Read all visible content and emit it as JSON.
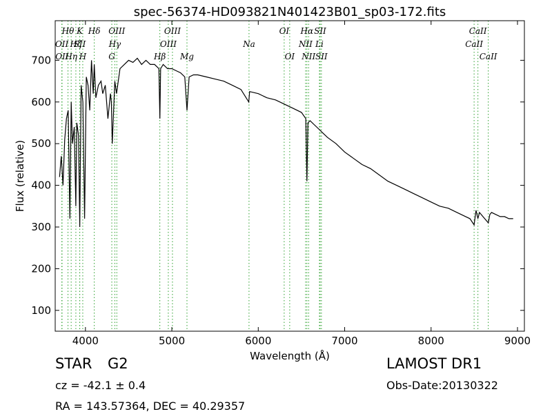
{
  "chart_data": {
    "type": "line",
    "title": "spec-56374-HD093821N401423B01_sp03-172.fits",
    "xlabel": "Wavelength (Å)",
    "ylabel": "Flux (relative)",
    "xlim": [
      3650,
      9080
    ],
    "ylim": [
      50,
      795
    ],
    "grid": false,
    "x_ticks": [
      4000,
      5000,
      6000,
      7000,
      8000,
      9000
    ],
    "y_ticks": [
      100,
      200,
      300,
      400,
      500,
      600,
      700
    ],
    "line_color": "#000000",
    "marker_color": "#2ca02c",
    "series": [
      {
        "x": [
          3700,
          3720,
          3740,
          3760,
          3780,
          3800,
          3820,
          3835,
          3850,
          3870,
          3889,
          3900,
          3920,
          3934,
          3950,
          3970,
          3990,
          4010,
          4030,
          4050,
          4070,
          4090,
          4102,
          4120,
          4150,
          4180,
          4200,
          4230,
          4260,
          4290,
          4300,
          4310,
          4340,
          4360,
          4400,
          4450,
          4500,
          4550,
          4600,
          4650,
          4700,
          4750,
          4800,
          4850,
          4861,
          4870,
          4900,
          4950,
          5000,
          5050,
          5100,
          5150,
          5175,
          5200,
          5250,
          5300,
          5400,
          5500,
          5600,
          5700,
          5800,
          5890,
          5900,
          6000,
          6100,
          6200,
          6300,
          6400,
          6500,
          6550,
          6563,
          6575,
          6600,
          6650,
          6700,
          6750,
          6800,
          6900,
          7000,
          7100,
          7200,
          7300,
          7400,
          7500,
          7600,
          7700,
          7800,
          7900,
          8000,
          8100,
          8200,
          8300,
          8400,
          8450,
          8498,
          8520,
          8542,
          8560,
          8600,
          8662,
          8680,
          8700,
          8750,
          8800,
          8850,
          8900,
          8950
        ],
        "y": [
          420,
          470,
          400,
          510,
          560,
          580,
          320,
          600,
          500,
          540,
          350,
          550,
          520,
          300,
          640,
          600,
          320,
          660,
          640,
          580,
          700,
          620,
          690,
          610,
          640,
          650,
          620,
          640,
          560,
          620,
          600,
          500,
          650,
          620,
          680,
          690,
          700,
          695,
          705,
          690,
          700,
          690,
          690,
          680,
          560,
          680,
          690,
          680,
          680,
          675,
          670,
          660,
          580,
          660,
          665,
          665,
          660,
          655,
          650,
          640,
          630,
          600,
          625,
          620,
          610,
          605,
          595,
          585,
          575,
          560,
          410,
          550,
          555,
          545,
          535,
          525,
          515,
          500,
          480,
          465,
          450,
          440,
          425,
          410,
          400,
          390,
          380,
          370,
          360,
          350,
          345,
          335,
          325,
          320,
          305,
          340,
          320,
          335,
          325,
          310,
          330,
          335,
          330,
          325,
          325,
          320,
          320
        ]
      }
    ],
    "annotations": [
      {
        "label": "OII",
        "x": 3727,
        "row": "top2"
      },
      {
        "label": "OII",
        "x": 3729,
        "row": "top3"
      },
      {
        "label": "Hθ",
        "x": 3798,
        "row": "top1"
      },
      {
        "label": "Hη",
        "x": 3835,
        "row": "top3"
      },
      {
        "label": "Hζ",
        "x": 3889,
        "row": "top2"
      },
      {
        "label": "SII",
        "x": 3934,
        "row": "top2"
      },
      {
        "label": "K",
        "x": 3934,
        "row": "top1"
      },
      {
        "label": "H",
        "x": 3969,
        "row": "top3"
      },
      {
        "label": "Hδ",
        "x": 4102,
        "row": "top1"
      },
      {
        "label": "OIII",
        "x": 4363,
        "row": "top1"
      },
      {
        "label": "Hγ",
        "x": 4340,
        "row": "top2"
      },
      {
        "label": "G",
        "x": 4305,
        "row": "top3"
      },
      {
        "label": "OIII",
        "x": 5007,
        "row": "top1"
      },
      {
        "label": "OIII",
        "x": 4959,
        "row": "top2"
      },
      {
        "label": "Hβ",
        "x": 4861,
        "row": "top3"
      },
      {
        "label": "Mg",
        "x": 5175,
        "row": "top3"
      },
      {
        "label": "Na",
        "x": 5893,
        "row": "top2"
      },
      {
        "label": "OI",
        "x": 6300,
        "row": "top1"
      },
      {
        "label": "OI",
        "x": 6364,
        "row": "top3"
      },
      {
        "label": "Hα",
        "x": 6563,
        "row": "top1"
      },
      {
        "label": "NII",
        "x": 6548,
        "row": "top2"
      },
      {
        "label": "NII",
        "x": 6583,
        "row": "top3"
      },
      {
        "label": "SII",
        "x": 6716,
        "row": "top1"
      },
      {
        "label": "Li",
        "x": 6708,
        "row": "top2"
      },
      {
        "label": "SII",
        "x": 6731,
        "row": "top3"
      },
      {
        "label": "CaII",
        "x": 8542,
        "row": "top1"
      },
      {
        "label": "CaII",
        "x": 8498,
        "row": "top2"
      },
      {
        "label": "CaII",
        "x": 8662,
        "row": "top3"
      }
    ]
  },
  "info": {
    "object_type": "STAR",
    "subclass": "G2",
    "survey": "LAMOST DR1",
    "cz": "cz = -42.1 ± 0.4",
    "obs_date": "Obs-Date:20130322",
    "coords": "RA = 143.57364, DEC = 40.29357"
  }
}
